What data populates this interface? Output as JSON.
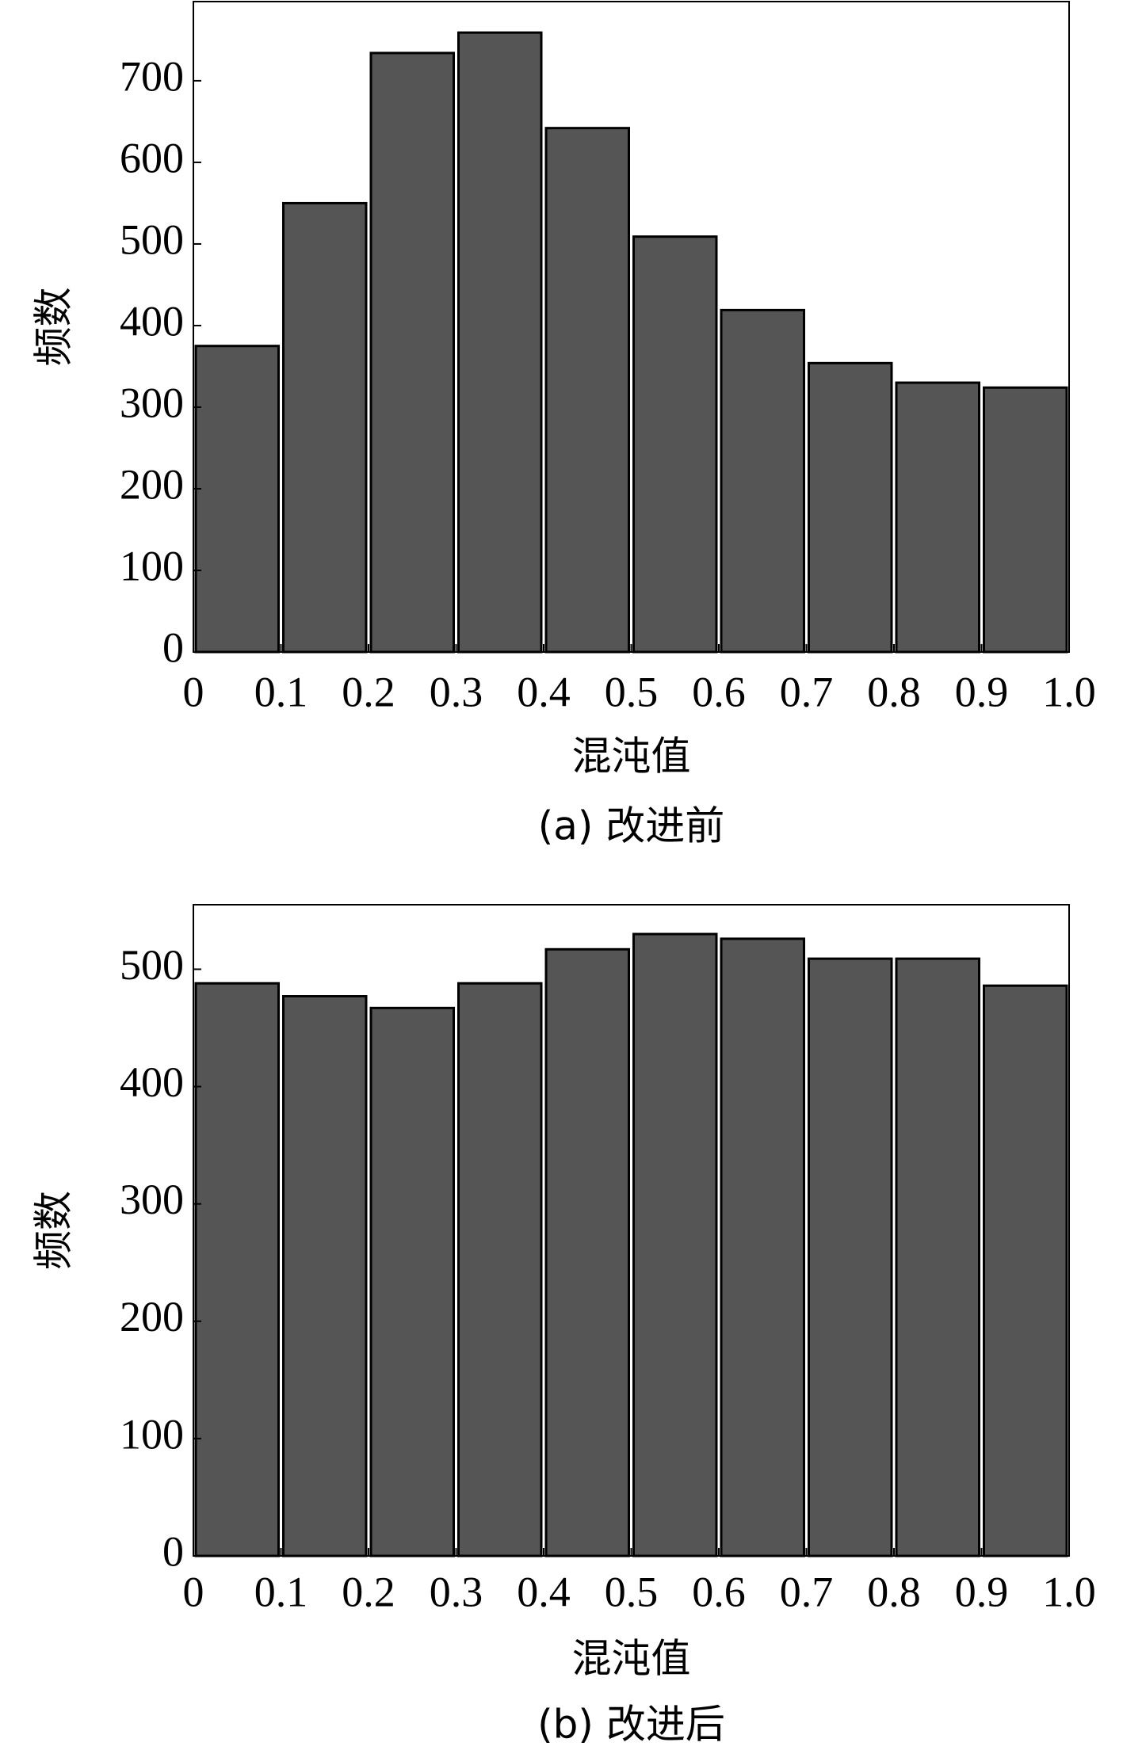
{
  "chart_data": [
    {
      "type": "histogram",
      "caption": "(a) 改进前",
      "xlabel": "混沌值",
      "ylabel": "频数",
      "bins": [
        0,
        0.1,
        0.2,
        0.3,
        0.4,
        0.5,
        0.6,
        0.7,
        0.8,
        0.9,
        1.0
      ],
      "values": [
        375,
        550,
        734,
        759,
        642,
        509,
        419,
        354,
        330,
        324
      ],
      "color": "#555555",
      "xlim": [
        0,
        1
      ],
      "xticks": [
        0,
        0.1,
        0.2,
        0.3,
        0.4,
        0.5,
        0.6,
        0.7,
        0.8,
        0.9,
        {
          "value": 1,
          "label": "1.0"
        }
      ],
      "ylim": [
        0,
        797
      ],
      "yticks": [
        0,
        100,
        200,
        300,
        400,
        500,
        600,
        700
      ]
    },
    {
      "type": "histogram",
      "caption": "(b) 改进后",
      "xlabel": "混沌值",
      "ylabel": "频数",
      "bins": [
        0,
        0.1,
        0.2,
        0.3,
        0.4,
        0.5,
        0.6,
        0.7,
        0.8,
        0.9,
        1.0
      ],
      "values": [
        488,
        477,
        467,
        488,
        517,
        530,
        526,
        509,
        509,
        486
      ],
      "color": "#555555",
      "xlim": [
        0,
        1
      ],
      "xticks": [
        0,
        0.1,
        0.2,
        0.3,
        0.4,
        0.5,
        0.6,
        0.7,
        0.8,
        0.9,
        {
          "value": 1,
          "label": "1.0"
        }
      ],
      "ylim": [
        0,
        555
      ],
      "yticks": [
        0,
        100,
        200,
        300,
        400,
        500
      ]
    }
  ]
}
